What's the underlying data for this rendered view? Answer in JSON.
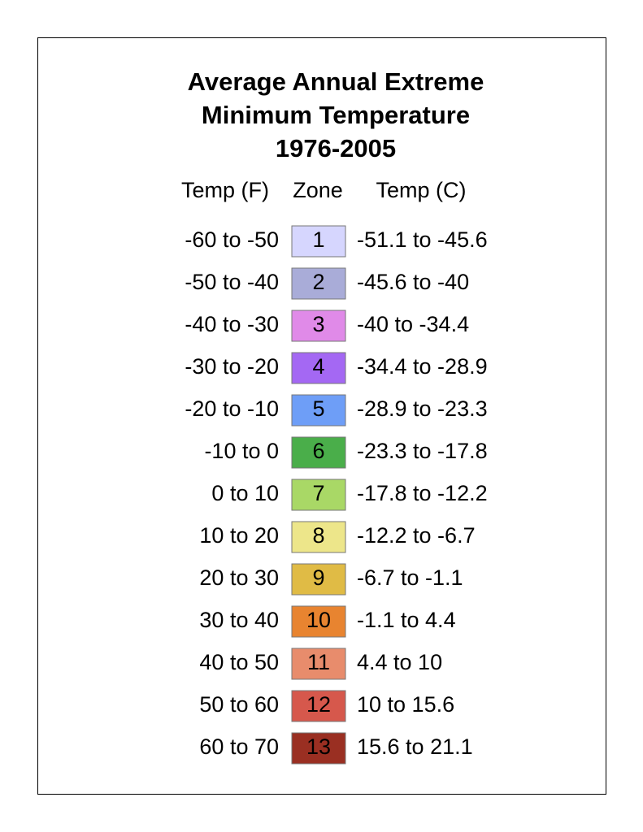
{
  "legend": {
    "title": [
      "Average Annual Extreme",
      "Minimum Temperature",
      "1976-2005"
    ],
    "headers": {
      "temp_f": "Temp (F)",
      "zone": "Zone",
      "temp_c": "Temp (C)"
    },
    "rows": [
      {
        "temp_f": "-60 to -50",
        "zone": "1",
        "temp_c": "-51.1 to -45.6",
        "color": "#d6d6fe"
      },
      {
        "temp_f": "-50 to -40",
        "zone": "2",
        "temp_c": "-45.6 to -40",
        "color": "#a9acd8"
      },
      {
        "temp_f": "-40 to -30",
        "zone": "3",
        "temp_c": "-40 to -34.4",
        "color": "#e08ae8"
      },
      {
        "temp_f": "-30 to -20",
        "zone": "4",
        "temp_c": "-34.4 to -28.9",
        "color": "#a468f3"
      },
      {
        "temp_f": "-20 to -10",
        "zone": "5",
        "temp_c": "-28.9 to -23.3",
        "color": "#6e9ef7"
      },
      {
        "temp_f": "-10 to 0",
        "zone": "6",
        "temp_c": "-23.3 to -17.8",
        "color": "#4aae4a"
      },
      {
        "temp_f": "0 to 10",
        "zone": "7",
        "temp_c": "-17.8 to -12.2",
        "color": "#a9d866"
      },
      {
        "temp_f": "10 to 20",
        "zone": "8",
        "temp_c": "-12.2 to -6.7",
        "color": "#ede68a"
      },
      {
        "temp_f": "20 to 30",
        "zone": "9",
        "temp_c": "-6.7 to -1.1",
        "color": "#e0bb45"
      },
      {
        "temp_f": "30 to 40",
        "zone": "10",
        "temp_c": "-1.1 to 4.4",
        "color": "#e88430"
      },
      {
        "temp_f": "40 to 50",
        "zone": "11",
        "temp_c": "4.4 to 10",
        "color": "#e88c6c"
      },
      {
        "temp_f": "50 to 60",
        "zone": "12",
        "temp_c": "10 to 15.6",
        "color": "#d6584c"
      },
      {
        "temp_f": "60 to 70",
        "zone": "13",
        "temp_c": "15.6 to 21.1",
        "color": "#9a2f22"
      }
    ]
  }
}
